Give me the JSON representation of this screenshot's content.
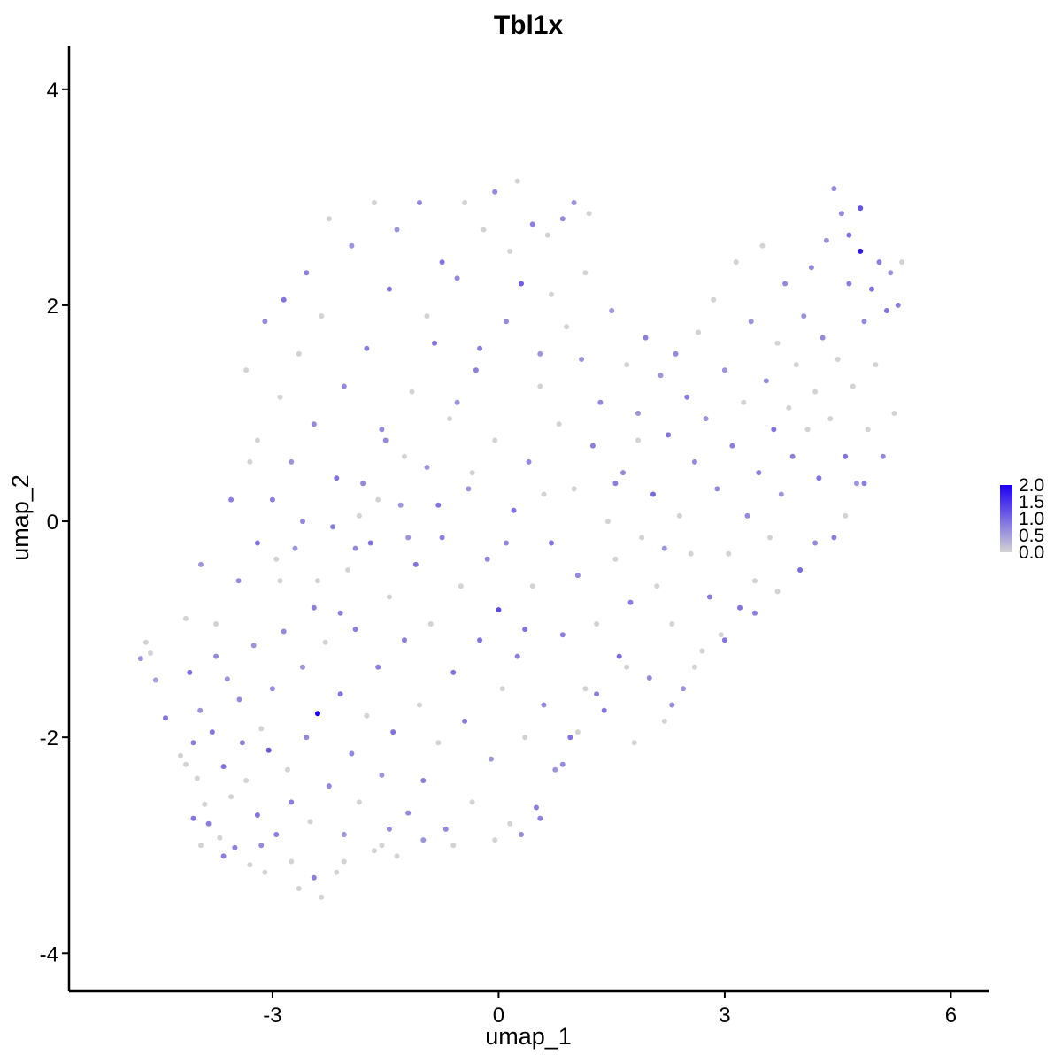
{
  "chart_data": {
    "type": "scatter",
    "title": "Tbl1x",
    "xlabel": "umap_1",
    "ylabel": "umap_2",
    "xlim": [
      -5.7,
      6.5
    ],
    "ylim": [
      -4.35,
      4.4
    ],
    "x_ticks": [
      -3,
      0,
      3,
      6
    ],
    "x_tick_labels": [
      "-3",
      "0",
      "3",
      "6"
    ],
    "y_ticks": [
      -4,
      -2,
      0,
      2,
      4
    ],
    "y_tick_labels": [
      "-4",
      "-2",
      "0",
      "2",
      "4"
    ],
    "grid": false,
    "legend": {
      "placement": "right",
      "type": "colorbar",
      "min": 0,
      "max": 2,
      "breaks": [
        0,
        0.5,
        1,
        1.5,
        2
      ],
      "labels": [
        "0.0",
        "0.5",
        "1.0",
        "1.5",
        "2.0"
      ],
      "low_color": "#D3D3D3",
      "high_color": "#1C00F2"
    },
    "point_radius_note": "cells colored by expression",
    "points": [
      [
        -4.75,
        -1.27,
        0.6
      ],
      [
        -4.68,
        -1.12,
        0.0
      ],
      [
        -4.62,
        -1.22,
        0.0
      ],
      [
        -4.55,
        -1.47,
        0.5
      ],
      [
        -4.42,
        -1.82,
        0.9
      ],
      [
        -4.22,
        -2.17,
        0.0
      ],
      [
        -4.15,
        -2.25,
        0.0
      ],
      [
        -4.1,
        -1.4,
        1.0
      ],
      [
        -4.05,
        -2.05,
        0.8
      ],
      [
        -4.0,
        -2.38,
        0.0
      ],
      [
        -3.96,
        -1.75,
        0.6
      ],
      [
        -3.9,
        -2.62,
        0.0
      ],
      [
        -3.85,
        -2.8,
        0.8
      ],
      [
        -3.8,
        -1.95,
        0.9
      ],
      [
        -3.75,
        -1.25,
        0.7
      ],
      [
        -3.7,
        -2.93,
        0.0
      ],
      [
        -3.65,
        -2.27,
        0.9
      ],
      [
        -3.6,
        -1.46,
        0.6
      ],
      [
        -3.55,
        -2.55,
        0.0
      ],
      [
        -3.5,
        -3.02,
        0.8
      ],
      [
        -3.44,
        -1.65,
        0.7
      ],
      [
        -3.4,
        -2.05,
        0.8
      ],
      [
        -3.35,
        -2.4,
        0.0
      ],
      [
        -3.3,
        -3.18,
        0.0
      ],
      [
        -3.25,
        -1.15,
        0.6
      ],
      [
        -3.2,
        -2.72,
        0.9
      ],
      [
        -3.15,
        -1.92,
        0.0
      ],
      [
        -3.1,
        -3.25,
        0.0
      ],
      [
        -3.05,
        -2.12,
        1.2
      ],
      [
        -3.0,
        -1.55,
        0.7
      ],
      [
        -2.95,
        -2.9,
        0.8
      ],
      [
        -2.9,
        -0.55,
        0.0
      ],
      [
        -2.85,
        -1.02,
        0.7
      ],
      [
        -2.8,
        -2.3,
        0.0
      ],
      [
        -2.75,
        -2.6,
        0.8
      ],
      [
        -2.7,
        -0.25,
        0.6
      ],
      [
        -2.65,
        -3.4,
        0.0
      ],
      [
        -2.6,
        -1.35,
        0.6
      ],
      [
        -2.55,
        -2.0,
        0.7
      ],
      [
        -2.5,
        -2.78,
        0.0
      ],
      [
        -2.45,
        -0.8,
        0.8
      ],
      [
        -2.4,
        -1.78,
        2.0
      ],
      [
        -2.35,
        -3.48,
        0.0
      ],
      [
        -2.3,
        -1.12,
        0.0
      ],
      [
        -2.25,
        -2.45,
        0.7
      ],
      [
        -2.2,
        -0.05,
        0.8
      ],
      [
        -2.15,
        -3.25,
        0.0
      ],
      [
        -2.1,
        -1.6,
        0.9
      ],
      [
        -2.05,
        -2.9,
        0.6
      ],
      [
        -2.0,
        -0.45,
        0.0
      ],
      [
        -1.95,
        -2.15,
        0.7
      ],
      [
        -1.9,
        -1.0,
        0.8
      ],
      [
        -1.85,
        -2.6,
        0.0
      ],
      [
        -1.8,
        0.35,
        0.7
      ],
      [
        -1.75,
        -1.8,
        0.0
      ],
      [
        -1.7,
        -0.2,
        0.9
      ],
      [
        -1.65,
        -3.05,
        0.0
      ],
      [
        -1.6,
        -1.35,
        0.8
      ],
      [
        -1.55,
        -2.35,
        0.6
      ],
      [
        -1.5,
        0.75,
        0.7
      ],
      [
        -1.45,
        -0.7,
        0.0
      ],
      [
        -1.4,
        -1.95,
        0.9
      ],
      [
        -1.35,
        -3.1,
        0.0
      ],
      [
        -1.3,
        0.15,
        0.6
      ],
      [
        -1.25,
        -1.1,
        0.8
      ],
      [
        -1.2,
        -2.7,
        0.7
      ],
      [
        -1.15,
        1.2,
        0.0
      ],
      [
        -1.1,
        -0.4,
        0.9
      ],
      [
        -1.05,
        -1.7,
        0.0
      ],
      [
        -1.0,
        -2.4,
        0.8
      ],
      [
        -0.95,
        0.5,
        0.6
      ],
      [
        -0.9,
        -0.95,
        0.0
      ],
      [
        -0.85,
        1.65,
        0.9
      ],
      [
        -0.8,
        -2.05,
        0.0
      ],
      [
        -0.75,
        -0.15,
        0.8
      ],
      [
        -0.7,
        -2.85,
        0.7
      ],
      [
        -0.65,
        0.95,
        0.0
      ],
      [
        -0.6,
        -1.4,
        0.9
      ],
      [
        -0.55,
        2.25,
        0.7
      ],
      [
        -0.5,
        -0.6,
        0.0
      ],
      [
        -0.45,
        -1.85,
        0.8
      ],
      [
        -0.4,
        0.3,
        0.6
      ],
      [
        -0.35,
        -2.6,
        0.0
      ],
      [
        -0.3,
        1.4,
        0.8
      ],
      [
        -0.25,
        -1.1,
        0.9
      ],
      [
        -0.2,
        2.7,
        0.0
      ],
      [
        -0.15,
        -0.35,
        0.7
      ],
      [
        -0.1,
        -2.2,
        0.6
      ],
      [
        -0.05,
        0.75,
        0.0
      ],
      [
        0.0,
        -0.82,
        1.3
      ],
      [
        0.05,
        -1.55,
        0.0
      ],
      [
        0.1,
        1.85,
        0.7
      ],
      [
        0.15,
        -2.8,
        0.0
      ],
      [
        0.2,
        0.1,
        0.9
      ],
      [
        0.25,
        -1.25,
        0.8
      ],
      [
        0.3,
        2.2,
        1.1
      ],
      [
        0.35,
        -2.0,
        0.0
      ],
      [
        0.4,
        0.55,
        0.7
      ],
      [
        0.45,
        -0.6,
        0.0
      ],
      [
        0.5,
        -2.65,
        0.8
      ],
      [
        0.55,
        1.25,
        0.0
      ],
      [
        0.6,
        -1.7,
        0.7
      ],
      [
        0.65,
        2.65,
        0.0
      ],
      [
        0.7,
        -0.2,
        0.9
      ],
      [
        0.75,
        -2.3,
        0.6
      ],
      [
        0.8,
        0.9,
        0.0
      ],
      [
        0.85,
        -1.05,
        0.8
      ],
      [
        0.9,
        1.8,
        0.0
      ],
      [
        0.95,
        -2.0,
        0.9
      ],
      [
        1.0,
        0.3,
        0.0
      ],
      [
        1.05,
        -0.5,
        0.7
      ],
      [
        1.1,
        1.5,
        0.6
      ],
      [
        1.15,
        -1.55,
        0.0
      ],
      [
        1.2,
        2.85,
        0.0
      ],
      [
        1.25,
        0.7,
        0.8
      ],
      [
        1.3,
        -0.95,
        0.0
      ],
      [
        1.35,
        1.1,
        0.7
      ],
      [
        1.4,
        -1.75,
        0.9
      ],
      [
        1.45,
        0.0,
        0.0
      ],
      [
        1.5,
        1.95,
        0.6
      ],
      [
        1.55,
        -0.35,
        0.0
      ],
      [
        1.6,
        -1.25,
        1.0
      ],
      [
        1.65,
        0.45,
        0.7
      ],
      [
        1.7,
        1.45,
        0.0
      ],
      [
        1.75,
        -0.75,
        0.8
      ],
      [
        1.8,
        -2.05,
        0.0
      ],
      [
        1.85,
        1.0,
        0.6
      ],
      [
        1.9,
        -0.15,
        0.0
      ],
      [
        1.95,
        1.7,
        0.8
      ],
      [
        2.0,
        -1.45,
        0.7
      ],
      [
        2.05,
        0.25,
        1.0
      ],
      [
        2.1,
        -0.6,
        0.0
      ],
      [
        2.15,
        1.35,
        0.6
      ],
      [
        2.2,
        -1.85,
        0.0
      ],
      [
        2.25,
        0.8,
        0.9
      ],
      [
        2.3,
        -0.95,
        0.0
      ],
      [
        2.35,
        1.55,
        0.7
      ],
      [
        2.4,
        0.05,
        0.0
      ],
      [
        2.45,
        -1.55,
        0.6
      ],
      [
        2.5,
        1.15,
        0.8
      ],
      [
        2.55,
        -0.3,
        0.0
      ],
      [
        2.6,
        0.55,
        0.7
      ],
      [
        2.65,
        1.75,
        0.0
      ],
      [
        2.7,
        -1.2,
        0.0
      ],
      [
        2.75,
        0.95,
        0.6
      ],
      [
        2.8,
        -0.7,
        0.8
      ],
      [
        2.85,
        2.05,
        0.0
      ],
      [
        2.9,
        0.3,
        0.7
      ],
      [
        2.95,
        -1.05,
        0.0
      ],
      [
        3.0,
        1.4,
        0.6
      ],
      [
        3.05,
        -0.3,
        0.0
      ],
      [
        3.1,
        0.7,
        0.8
      ],
      [
        3.15,
        2.4,
        0.0
      ],
      [
        3.2,
        -0.8,
        0.9
      ],
      [
        3.25,
        1.1,
        0.0
      ],
      [
        3.3,
        0.05,
        0.7
      ],
      [
        3.35,
        1.85,
        0.6
      ],
      [
        3.4,
        -0.55,
        0.0
      ],
      [
        3.45,
        0.45,
        0.8
      ],
      [
        3.5,
        2.55,
        0.0
      ],
      [
        3.55,
        1.3,
        0.7
      ],
      [
        3.6,
        -0.15,
        0.0
      ],
      [
        3.65,
        0.85,
        0.9
      ],
      [
        3.7,
        1.65,
        0.0
      ],
      [
        3.75,
        0.25,
        0.6
      ],
      [
        3.8,
        2.2,
        0.7
      ],
      [
        3.85,
        1.05,
        0.0
      ],
      [
        3.9,
        0.6,
        0.8
      ],
      [
        3.95,
        1.45,
        0.0
      ],
      [
        4.0,
        -0.45,
        1.0
      ],
      [
        4.05,
        1.9,
        0.6
      ],
      [
        4.1,
        0.85,
        0.0
      ],
      [
        4.15,
        2.35,
        0.7
      ],
      [
        4.2,
        1.2,
        0.0
      ],
      [
        4.25,
        0.4,
        0.9
      ],
      [
        4.3,
        1.7,
        0.7
      ],
      [
        4.35,
        2.6,
        0.6
      ],
      [
        4.4,
        0.95,
        0.0
      ],
      [
        4.45,
        -0.15,
        0.8
      ],
      [
        4.5,
        1.5,
        0.0
      ],
      [
        4.55,
        2.85,
        0.7
      ],
      [
        4.6,
        0.6,
        0.9
      ],
      [
        4.65,
        2.2,
        0.8
      ],
      [
        4.7,
        1.25,
        0.0
      ],
      [
        4.75,
        0.35,
        0.6
      ],
      [
        4.8,
        2.5,
        1.8
      ],
      [
        4.85,
        1.85,
        0.7
      ],
      [
        4.9,
        0.85,
        0.0
      ],
      [
        4.95,
        2.15,
        0.9
      ],
      [
        5.0,
        1.45,
        0.0
      ],
      [
        5.05,
        2.4,
        0.8
      ],
      [
        5.1,
        0.6,
        0.7
      ],
      [
        5.15,
        1.95,
        0.9
      ],
      [
        5.2,
        2.3,
        0.6
      ],
      [
        5.25,
        1.0,
        0.0
      ],
      [
        5.3,
        2.0,
        0.8
      ],
      [
        5.35,
        2.4,
        0.0
      ],
      [
        4.45,
        3.08,
        0.7
      ],
      [
        4.8,
        2.9,
        1.2
      ],
      [
        4.65,
        2.65,
        0.9
      ],
      [
        -3.35,
        1.4,
        0.0
      ],
      [
        -3.2,
        0.75,
        0.0
      ],
      [
        -3.1,
        1.85,
        0.7
      ],
      [
        -3.0,
        0.2,
        0.8
      ],
      [
        -2.9,
        1.15,
        0.0
      ],
      [
        -2.85,
        2.05,
        0.9
      ],
      [
        -2.75,
        0.55,
        0.6
      ],
      [
        -2.65,
        1.55,
        0.0
      ],
      [
        -2.55,
        2.3,
        0.8
      ],
      [
        -2.45,
        0.9,
        0.7
      ],
      [
        -2.35,
        1.9,
        0.0
      ],
      [
        -2.25,
        2.8,
        0.0
      ],
      [
        -2.15,
        0.4,
        0.9
      ],
      [
        -2.05,
        1.25,
        0.7
      ],
      [
        -1.95,
        2.55,
        0.6
      ],
      [
        -1.85,
        0.05,
        0.0
      ],
      [
        -1.75,
        1.6,
        0.8
      ],
      [
        -1.65,
        2.95,
        0.0
      ],
      [
        -1.55,
        0.85,
        0.7
      ],
      [
        -1.45,
        2.15,
        0.9
      ],
      [
        -1.35,
        2.7,
        0.6
      ],
      [
        -1.25,
        0.6,
        0.0
      ],
      [
        -1.05,
        2.95,
        0.7
      ],
      [
        -0.95,
        1.9,
        0.0
      ],
      [
        -0.75,
        2.4,
        0.9
      ],
      [
        -0.55,
        1.1,
        0.6
      ],
      [
        -0.45,
        2.95,
        0.0
      ],
      [
        -0.25,
        1.6,
        0.8
      ],
      [
        -0.05,
        3.05,
        0.7
      ],
      [
        0.15,
        2.5,
        0.0
      ],
      [
        0.25,
        3.15,
        0.0
      ],
      [
        0.45,
        2.75,
        0.8
      ],
      [
        0.55,
        1.55,
        0.6
      ],
      [
        0.7,
        2.1,
        0.0
      ],
      [
        0.85,
        2.8,
        0.7
      ],
      [
        1.15,
        2.3,
        0.0
      ],
      [
        1.0,
        2.95,
        0.6
      ],
      [
        -4.15,
        -0.9,
        0.0
      ],
      [
        -3.95,
        -0.4,
        0.6
      ],
      [
        -3.75,
        -0.95,
        0.0
      ],
      [
        -3.55,
        0.2,
        0.8
      ],
      [
        -3.45,
        -0.55,
        0.7
      ],
      [
        -3.3,
        0.55,
        0.0
      ],
      [
        -3.2,
        -0.2,
        0.9
      ],
      [
        -2.95,
        -0.35,
        0.0
      ],
      [
        -2.6,
        0.0,
        0.7
      ],
      [
        -2.4,
        -0.55,
        0.0
      ],
      [
        -2.1,
        -0.85,
        0.8
      ],
      [
        -1.9,
        -0.25,
        0.7
      ],
      [
        -1.6,
        0.2,
        0.0
      ],
      [
        -1.2,
        -0.15,
        0.6
      ],
      [
        -0.8,
        0.15,
        0.9
      ],
      [
        -0.35,
        0.45,
        0.0
      ],
      [
        0.1,
        -0.2,
        0.7
      ],
      [
        0.35,
        -1.0,
        0.9
      ],
      [
        0.6,
        0.25,
        0.0
      ],
      [
        1.55,
        0.35,
        0.8
      ],
      [
        1.85,
        0.75,
        0.0
      ],
      [
        2.2,
        -0.25,
        0.6
      ],
      [
        -0.05,
        -2.95,
        0.0
      ],
      [
        0.3,
        -2.9,
        0.7
      ],
      [
        0.55,
        -2.75,
        0.8
      ],
      [
        -0.6,
        -3.0,
        0.0
      ],
      [
        -1.0,
        -2.95,
        0.6
      ],
      [
        -1.45,
        -2.85,
        0.7
      ],
      [
        -1.55,
        -3.0,
        0.0
      ],
      [
        -2.05,
        -3.15,
        0.0
      ],
      [
        -2.45,
        -3.3,
        0.8
      ],
      [
        -2.75,
        -3.15,
        0.0
      ],
      [
        -3.15,
        -3.0,
        0.7
      ],
      [
        -3.65,
        -3.1,
        0.8
      ],
      [
        -3.95,
        -3.0,
        0.0
      ],
      [
        -4.05,
        -2.75,
        0.9
      ],
      [
        0.85,
        -2.25,
        0.7
      ],
      [
        1.05,
        -1.95,
        0.0
      ],
      [
        1.3,
        -1.6,
        0.8
      ],
      [
        1.7,
        -1.35,
        0.0
      ],
      [
        2.3,
        -1.7,
        0.7
      ],
      [
        2.6,
        -1.35,
        0.0
      ],
      [
        3.0,
        -1.1,
        0.9
      ],
      [
        3.4,
        -0.85,
        0.8
      ],
      [
        3.7,
        -0.65,
        0.0
      ],
      [
        4.2,
        -0.2,
        0.7
      ],
      [
        4.6,
        0.05,
        0.0
      ],
      [
        4.85,
        0.35,
        0.8
      ]
    ]
  }
}
